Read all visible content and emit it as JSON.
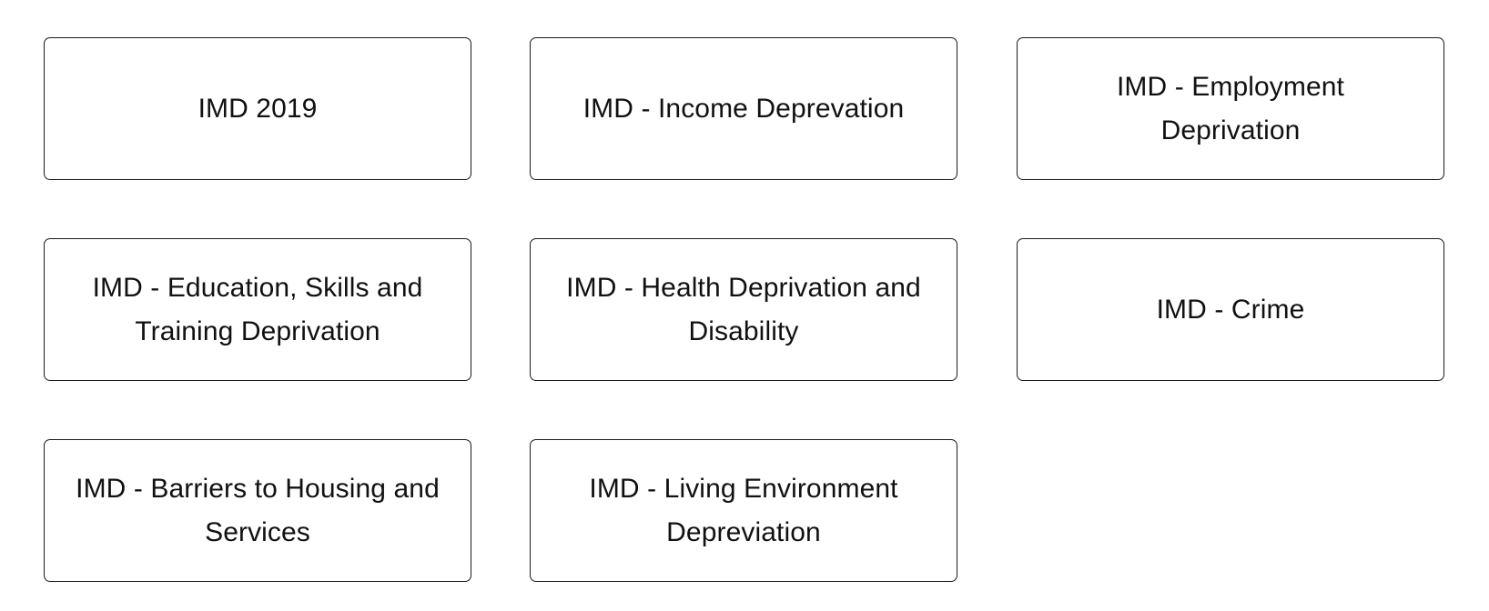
{
  "cards": [
    {
      "label": "IMD 2019"
    },
    {
      "label": "IMD - Income Deprevation"
    },
    {
      "label": "IMD - Employment Deprivation"
    },
    {
      "label": "IMD - Education, Skills and Training Deprivation"
    },
    {
      "label": "IMD - Health Deprivation and Disability"
    },
    {
      "label": "IMD - Crime"
    },
    {
      "label": "IMD - Barriers to Housing and Services"
    },
    {
      "label": "IMD - Living Environment Depreviation"
    }
  ]
}
